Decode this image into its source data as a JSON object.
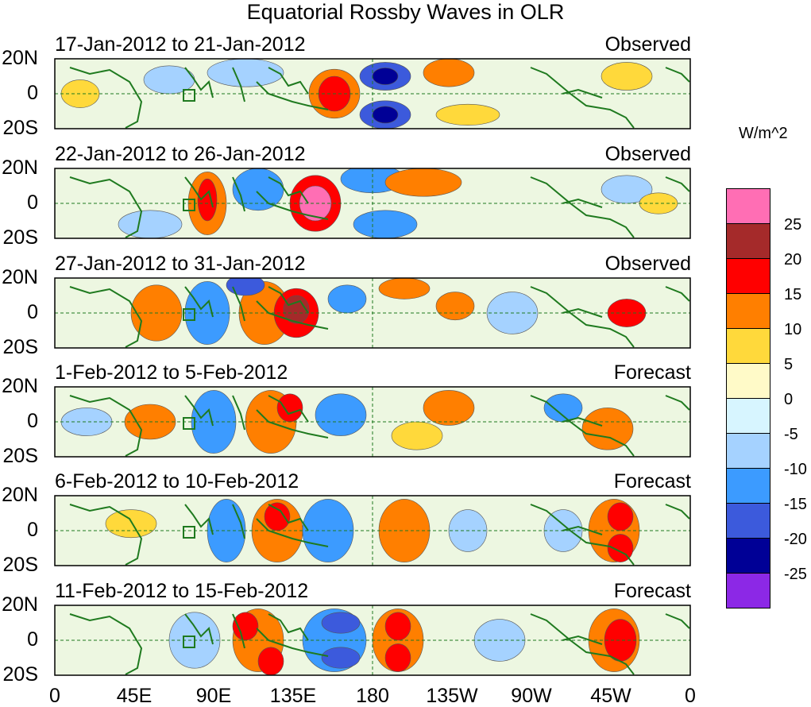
{
  "title": "Equatorial Rossby Waves in OLR",
  "units": "W/m^2",
  "lat_labels": [
    "20N",
    "0",
    "20S"
  ],
  "lon_labels": [
    "0",
    "45E",
    "90E",
    "135E",
    "180",
    "135W",
    "90W",
    "45W",
    "0"
  ],
  "panels": [
    {
      "date": "17-Jan-2012 to 21-Jan-2012",
      "status": "Observed"
    },
    {
      "date": "22-Jan-2012 to 26-Jan-2012",
      "status": "Observed"
    },
    {
      "date": "27-Jan-2012 to 31-Jan-2012",
      "status": "Observed"
    },
    {
      "date": "1-Feb-2012 to 5-Feb-2012",
      "status": "Forecast"
    },
    {
      "date": "6-Feb-2012 to 10-Feb-2012",
      "status": "Forecast"
    },
    {
      "date": "11-Feb-2012 to 15-Feb-2012",
      "status": "Forecast"
    }
  ],
  "colorbar": {
    "ticks": [
      "25",
      "20",
      "15",
      "10",
      "5",
      "0",
      "-5",
      "-10",
      "-15",
      "-20",
      "-25"
    ],
    "colors": [
      "#ff6eb4",
      "#a52a2a",
      "#ff0000",
      "#ff7f00",
      "#ffd93b",
      "#fffac8",
      "#d7f5ff",
      "#a5d2ff",
      "#3c9bff",
      "#3c5adc",
      "#000096",
      "#8c28e6"
    ]
  },
  "blobs": [
    [
      [
        0.04,
        0.5,
        0.03,
        0.2,
        "#ffd93b"
      ],
      [
        0.44,
        0.5,
        0.04,
        0.35,
        "#ff7f00"
      ],
      [
        0.44,
        0.5,
        0.025,
        0.25,
        "#ff0000"
      ],
      [
        0.52,
        0.25,
        0.04,
        0.2,
        "#3c5adc"
      ],
      [
        0.52,
        0.25,
        0.02,
        0.12,
        "#000096"
      ],
      [
        0.52,
        0.8,
        0.04,
        0.2,
        "#3c5adc"
      ],
      [
        0.52,
        0.8,
        0.02,
        0.12,
        "#000096"
      ],
      [
        0.62,
        0.2,
        0.04,
        0.2,
        "#ff7f00"
      ],
      [
        0.18,
        0.3,
        0.04,
        0.2,
        "#a5d2ff"
      ],
      [
        0.3,
        0.2,
        0.06,
        0.2,
        "#a5d2ff"
      ],
      [
        0.9,
        0.25,
        0.04,
        0.2,
        "#ffd93b"
      ],
      [
        0.65,
        0.8,
        0.05,
        0.15,
        "#ffd93b"
      ]
    ],
    [
      [
        0.24,
        0.5,
        0.03,
        0.45,
        "#ff7f00"
      ],
      [
        0.24,
        0.45,
        0.015,
        0.3,
        "#ff0000"
      ],
      [
        0.41,
        0.5,
        0.04,
        0.4,
        "#ff0000"
      ],
      [
        0.41,
        0.5,
        0.025,
        0.25,
        "#ff6eb4"
      ],
      [
        0.5,
        0.15,
        0.05,
        0.2,
        "#3c9bff"
      ],
      [
        0.52,
        0.8,
        0.05,
        0.2,
        "#3c9bff"
      ],
      [
        0.32,
        0.3,
        0.04,
        0.3,
        "#3c9bff"
      ],
      [
        0.58,
        0.2,
        0.06,
        0.2,
        "#ff7f00"
      ],
      [
        0.15,
        0.8,
        0.05,
        0.2,
        "#a5d2ff"
      ],
      [
        0.9,
        0.3,
        0.04,
        0.2,
        "#a5d2ff"
      ],
      [
        0.95,
        0.5,
        0.03,
        0.15,
        "#ffd93b"
      ]
    ],
    [
      [
        0.16,
        0.5,
        0.04,
        0.4,
        "#ff7f00"
      ],
      [
        0.24,
        0.5,
        0.035,
        0.45,
        "#3c9bff"
      ],
      [
        0.33,
        0.5,
        0.04,
        0.45,
        "#ff7f00"
      ],
      [
        0.38,
        0.5,
        0.035,
        0.35,
        "#ff0000"
      ],
      [
        0.38,
        0.45,
        0.02,
        0.2,
        "#a52a2a"
      ],
      [
        0.3,
        0.1,
        0.03,
        0.15,
        "#3c5adc"
      ],
      [
        0.46,
        0.3,
        0.03,
        0.2,
        "#3c9bff"
      ],
      [
        0.55,
        0.15,
        0.04,
        0.15,
        "#ff7f00"
      ],
      [
        0.63,
        0.4,
        0.03,
        0.2,
        "#ff7f00"
      ],
      [
        0.9,
        0.5,
        0.03,
        0.2,
        "#ff0000"
      ],
      [
        0.72,
        0.5,
        0.04,
        0.3,
        "#a5d2ff"
      ]
    ],
    [
      [
        0.15,
        0.5,
        0.04,
        0.25,
        "#ff7f00"
      ],
      [
        0.25,
        0.5,
        0.035,
        0.45,
        "#3c9bff"
      ],
      [
        0.34,
        0.5,
        0.04,
        0.45,
        "#ff7f00"
      ],
      [
        0.37,
        0.3,
        0.02,
        0.2,
        "#ff0000"
      ],
      [
        0.45,
        0.4,
        0.04,
        0.3,
        "#3c9bff"
      ],
      [
        0.62,
        0.3,
        0.04,
        0.25,
        "#ff7f00"
      ],
      [
        0.57,
        0.7,
        0.04,
        0.2,
        "#ffd93b"
      ],
      [
        0.87,
        0.6,
        0.04,
        0.3,
        "#ff7f00"
      ],
      [
        0.8,
        0.3,
        0.03,
        0.2,
        "#3c9bff"
      ],
      [
        0.05,
        0.5,
        0.04,
        0.2,
        "#a5d2ff"
      ]
    ],
    [
      [
        0.27,
        0.5,
        0.03,
        0.45,
        "#3c9bff"
      ],
      [
        0.35,
        0.5,
        0.04,
        0.45,
        "#ff7f00"
      ],
      [
        0.35,
        0.3,
        0.02,
        0.2,
        "#ff0000"
      ],
      [
        0.43,
        0.5,
        0.04,
        0.45,
        "#3c9bff"
      ],
      [
        0.55,
        0.5,
        0.04,
        0.45,
        "#ff7f00"
      ],
      [
        0.65,
        0.5,
        0.03,
        0.3,
        "#a5d2ff"
      ],
      [
        0.88,
        0.5,
        0.04,
        0.45,
        "#ff7f00"
      ],
      [
        0.89,
        0.3,
        0.02,
        0.2,
        "#ff0000"
      ],
      [
        0.89,
        0.75,
        0.02,
        0.2,
        "#ff0000"
      ],
      [
        0.12,
        0.4,
        0.04,
        0.2,
        "#ffd93b"
      ],
      [
        0.8,
        0.5,
        0.03,
        0.3,
        "#a5d2ff"
      ]
    ],
    [
      [
        0.22,
        0.5,
        0.04,
        0.4,
        "#a5d2ff"
      ],
      [
        0.32,
        0.5,
        0.04,
        0.45,
        "#ff7f00"
      ],
      [
        0.3,
        0.3,
        0.02,
        0.2,
        "#ff0000"
      ],
      [
        0.34,
        0.8,
        0.02,
        0.2,
        "#ff0000"
      ],
      [
        0.44,
        0.5,
        0.05,
        0.45,
        "#3c9bff"
      ],
      [
        0.45,
        0.25,
        0.03,
        0.15,
        "#3c5adc"
      ],
      [
        0.45,
        0.75,
        0.03,
        0.15,
        "#3c5adc"
      ],
      [
        0.54,
        0.5,
        0.04,
        0.45,
        "#ff7f00"
      ],
      [
        0.54,
        0.3,
        0.02,
        0.2,
        "#ff0000"
      ],
      [
        0.54,
        0.75,
        0.02,
        0.2,
        "#ff0000"
      ],
      [
        0.88,
        0.5,
        0.04,
        0.45,
        "#ff7f00"
      ],
      [
        0.89,
        0.5,
        0.025,
        0.3,
        "#ff0000"
      ],
      [
        0.7,
        0.5,
        0.04,
        0.3,
        "#a5d2ff"
      ]
    ]
  ]
}
